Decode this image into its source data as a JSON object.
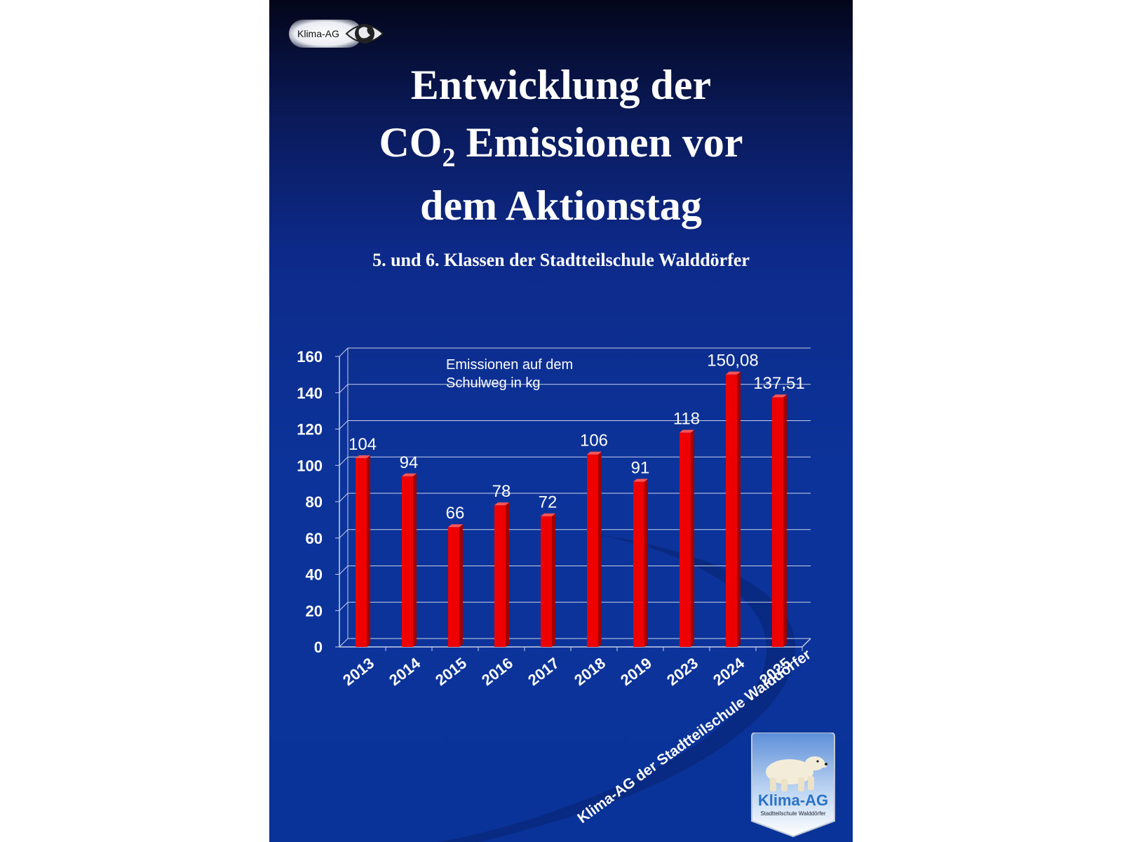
{
  "slide": {
    "logo_text": "Klima-AG",
    "title_line1": "Entwicklung der",
    "title_line2_pre": "CO",
    "title_line2_sub": "2",
    "title_line2_post": " Emissionen vor",
    "title_line3": "dem Aktionstag",
    "subtitle": "5. und 6. Klassen der Stadtteilschule Walddörfer",
    "watermark": "Klima-AG der Stadtteilschule Walddörfer",
    "badge_title": "Klima-AG",
    "badge_subtitle": "Stadtteilschule Walddörfer"
  },
  "chart_data": {
    "type": "bar",
    "categories": [
      "2013",
      "2014",
      "2015",
      "2016",
      "2017",
      "2018",
      "2019",
      "2023",
      "2024",
      "2025"
    ],
    "values": [
      104,
      94,
      66,
      78,
      72,
      106,
      91,
      118,
      150.08,
      137.51
    ],
    "data_labels": [
      "104",
      "94",
      "66",
      "78",
      "72",
      "106",
      "91",
      "118",
      "150,08",
      "137,51"
    ],
    "annotation_line1": "Emissionen auf dem",
    "annotation_line2": "Schulweg in kg",
    "ylim": [
      0,
      160
    ],
    "yticks": [
      0,
      20,
      40,
      60,
      80,
      100,
      120,
      140,
      160
    ],
    "grid": true,
    "colors": {
      "bar": "#ee0000",
      "bar_side": "#a00000",
      "bar_top": "#ff5555",
      "grid": "#c8d0e8",
      "text": "#ffffff"
    }
  }
}
